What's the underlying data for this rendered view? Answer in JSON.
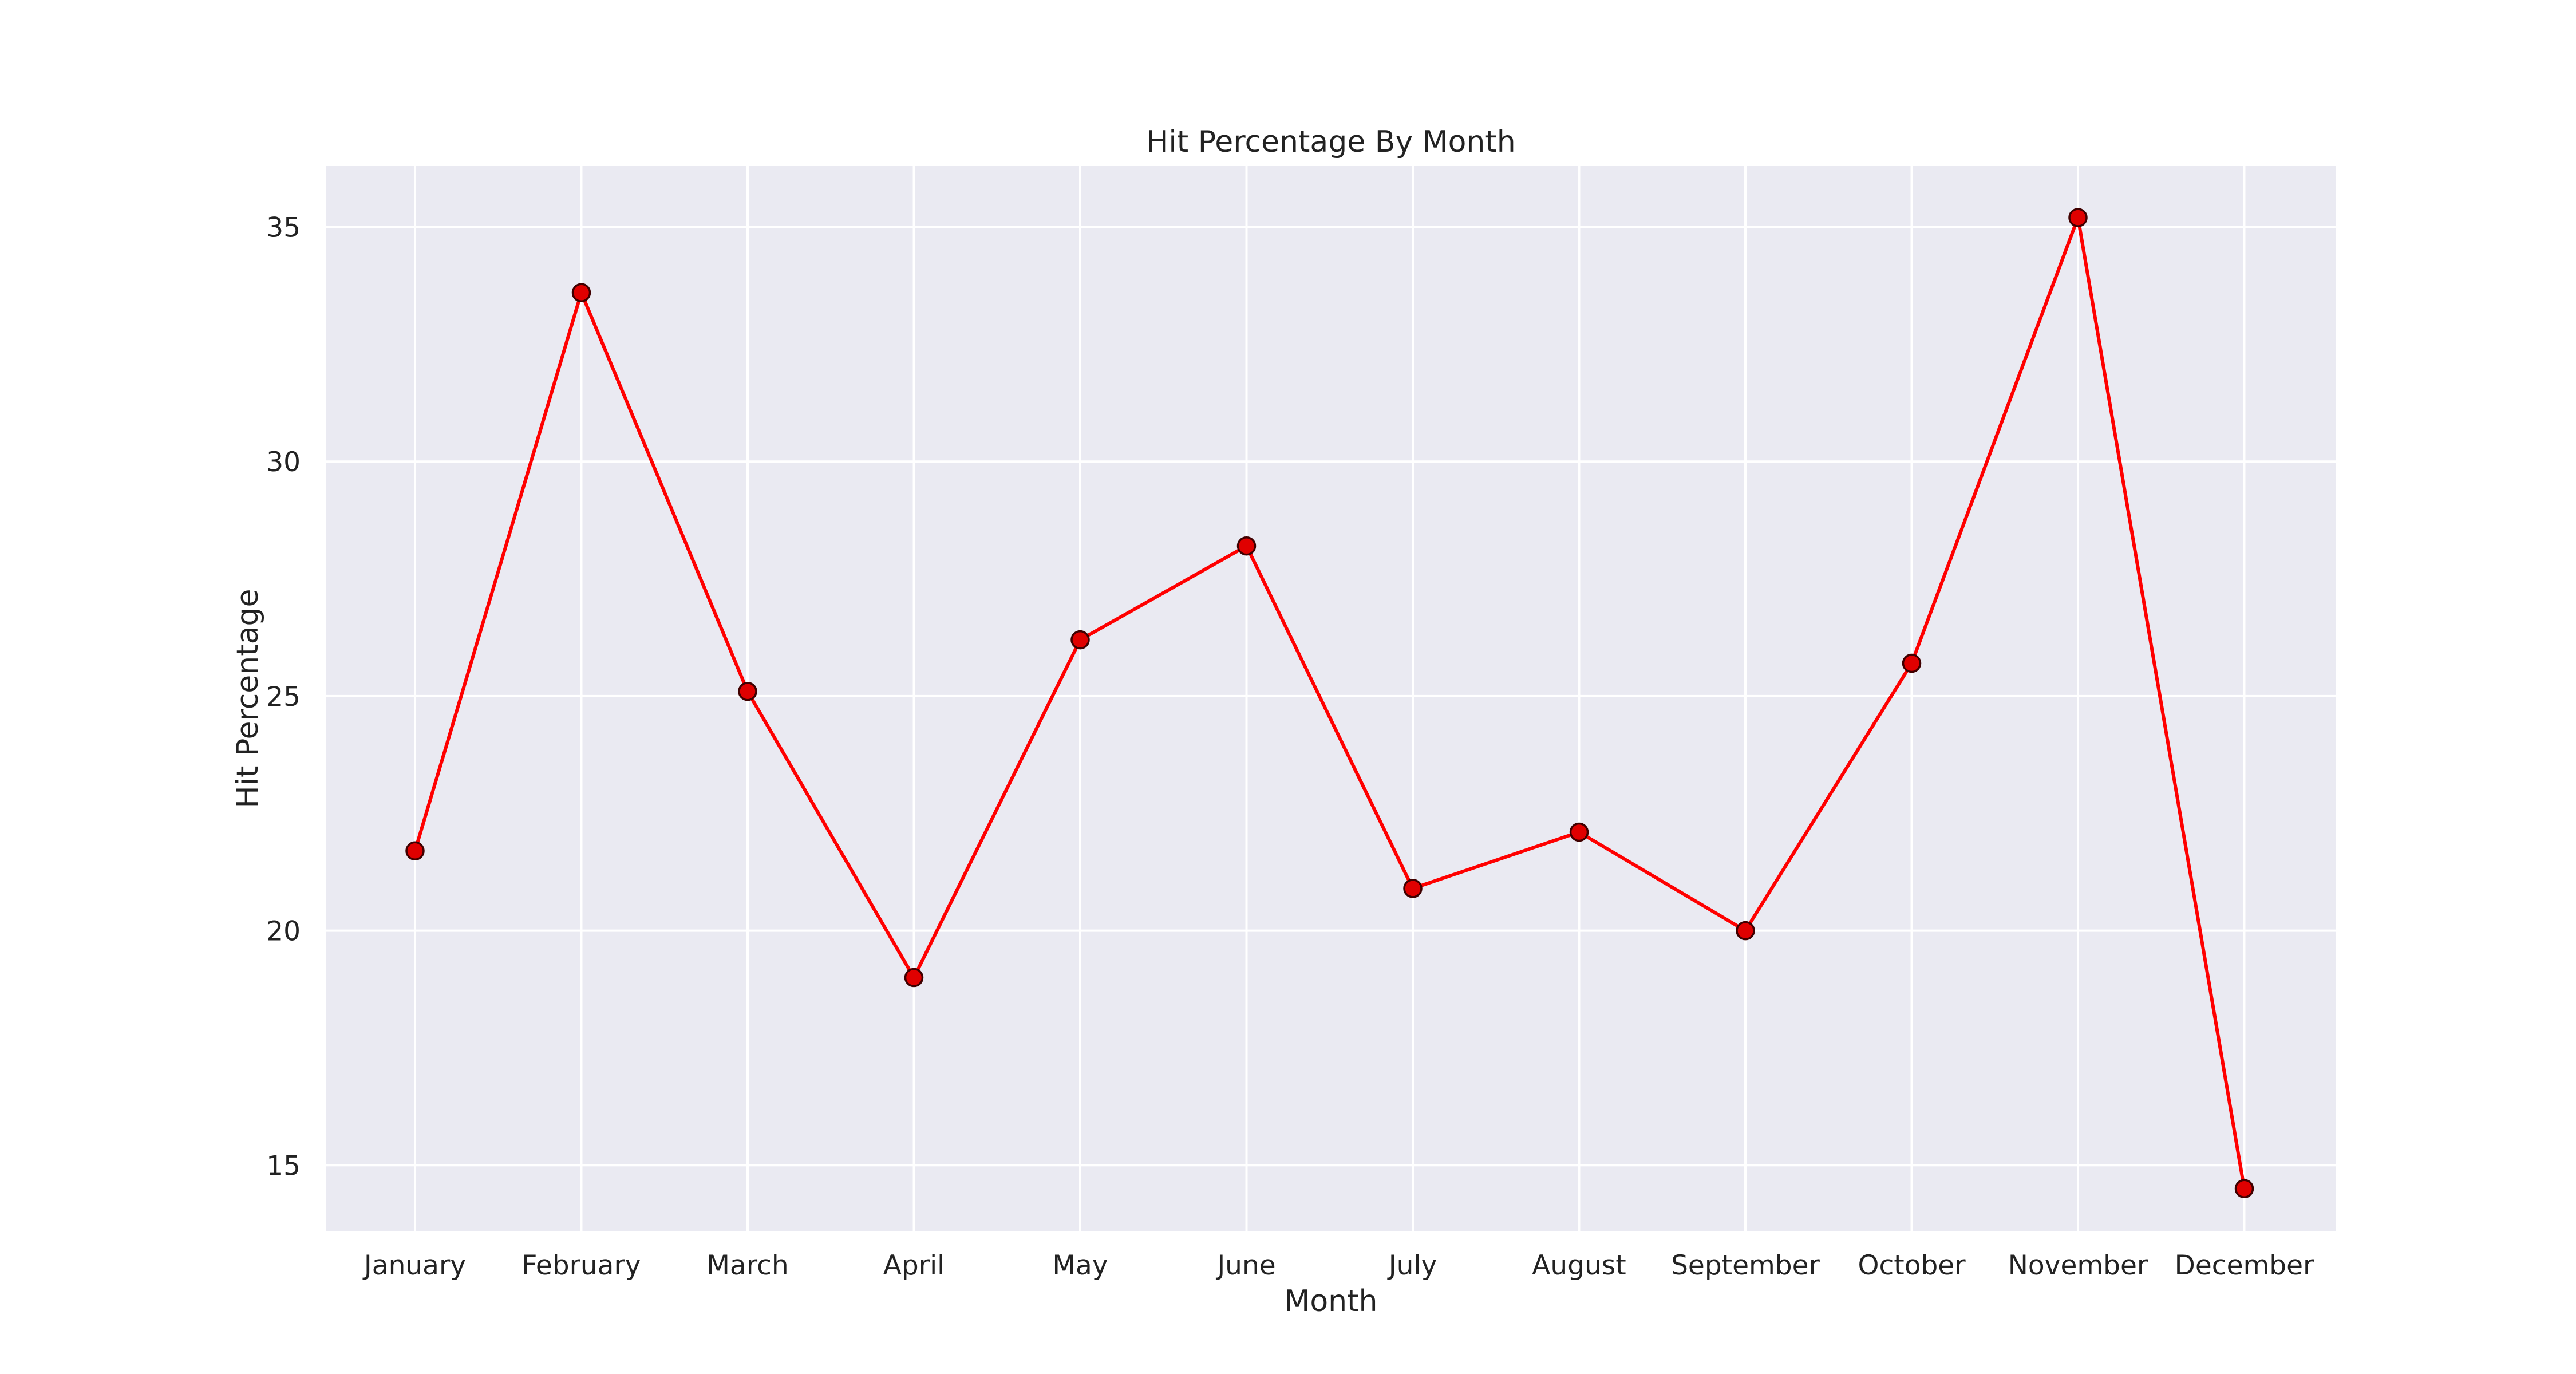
{
  "chart_data": {
    "type": "line",
    "title": "Hit Percentage By Month",
    "xlabel": "Month",
    "ylabel": "Hit Percentage",
    "categories": [
      "January",
      "February",
      "March",
      "April",
      "May",
      "June",
      "July",
      "August",
      "September",
      "October",
      "November",
      "December"
    ],
    "series": [
      {
        "values": [
          21.7,
          33.6,
          25.1,
          19.0,
          26.2,
          28.2,
          20.9,
          22.1,
          20.0,
          25.7,
          35.2,
          14.5
        ]
      }
    ],
    "yticks": [
      15,
      20,
      25,
      30,
      35
    ],
    "ytick_labels": [
      "15",
      "20",
      "25",
      "30",
      "35"
    ],
    "ylim": [
      13.6,
      36.3
    ],
    "grid": true,
    "colors": {
      "background": "#EAEAF2",
      "grid": "#FFFFFF",
      "line": "#FF0000",
      "marker_fill": "#E00000",
      "marker_edge": "#400000"
    }
  }
}
